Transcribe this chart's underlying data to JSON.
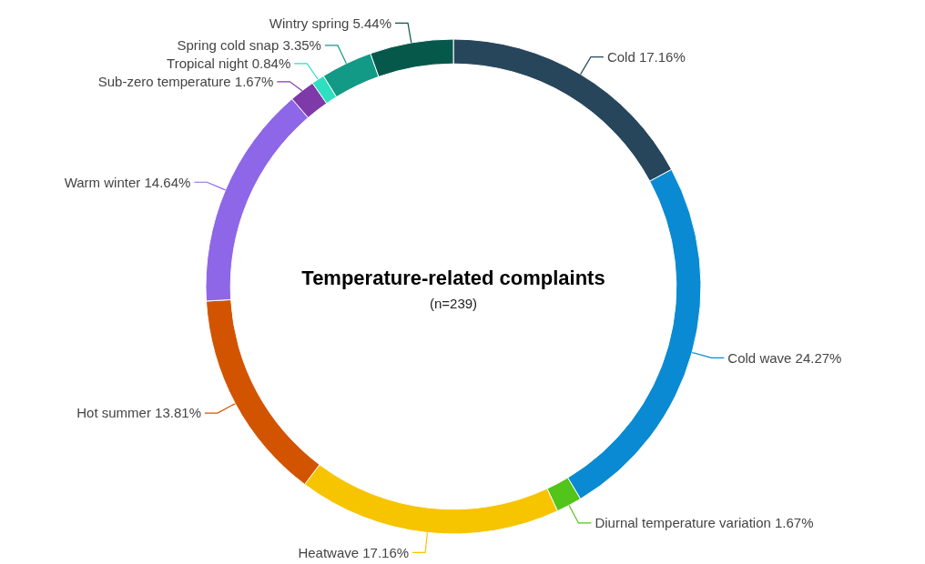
{
  "chart_data": {
    "type": "donut",
    "title": "Temperature-related complaints",
    "subtitle": "(n=239)",
    "categories": [
      "Cold",
      "Cold wave",
      "Diurnal temperature variation",
      "Heatwave",
      "Hot summer",
      "Warm winter",
      "Sub-zero temperature",
      "Tropical night",
      "Spring cold snap",
      "Wintry spring"
    ],
    "values": [
      17.16,
      24.27,
      1.67,
      17.16,
      13.81,
      14.64,
      1.67,
      0.84,
      3.35,
      5.44
    ],
    "value_labels": [
      "17.16%",
      "24.27%",
      "1.67%",
      "17.16%",
      "13.81%",
      "14.64%",
      "1.67%",
      "0.84%",
      "3.35%",
      "5.44%"
    ],
    "colors": [
      "#27465c",
      "#0a8ad2",
      "#52c41a",
      "#f7c400",
      "#d35400",
      "#8e67e8",
      "#7d3aa8",
      "#2ee0c0",
      "#139a86",
      "#06584a"
    ]
  }
}
